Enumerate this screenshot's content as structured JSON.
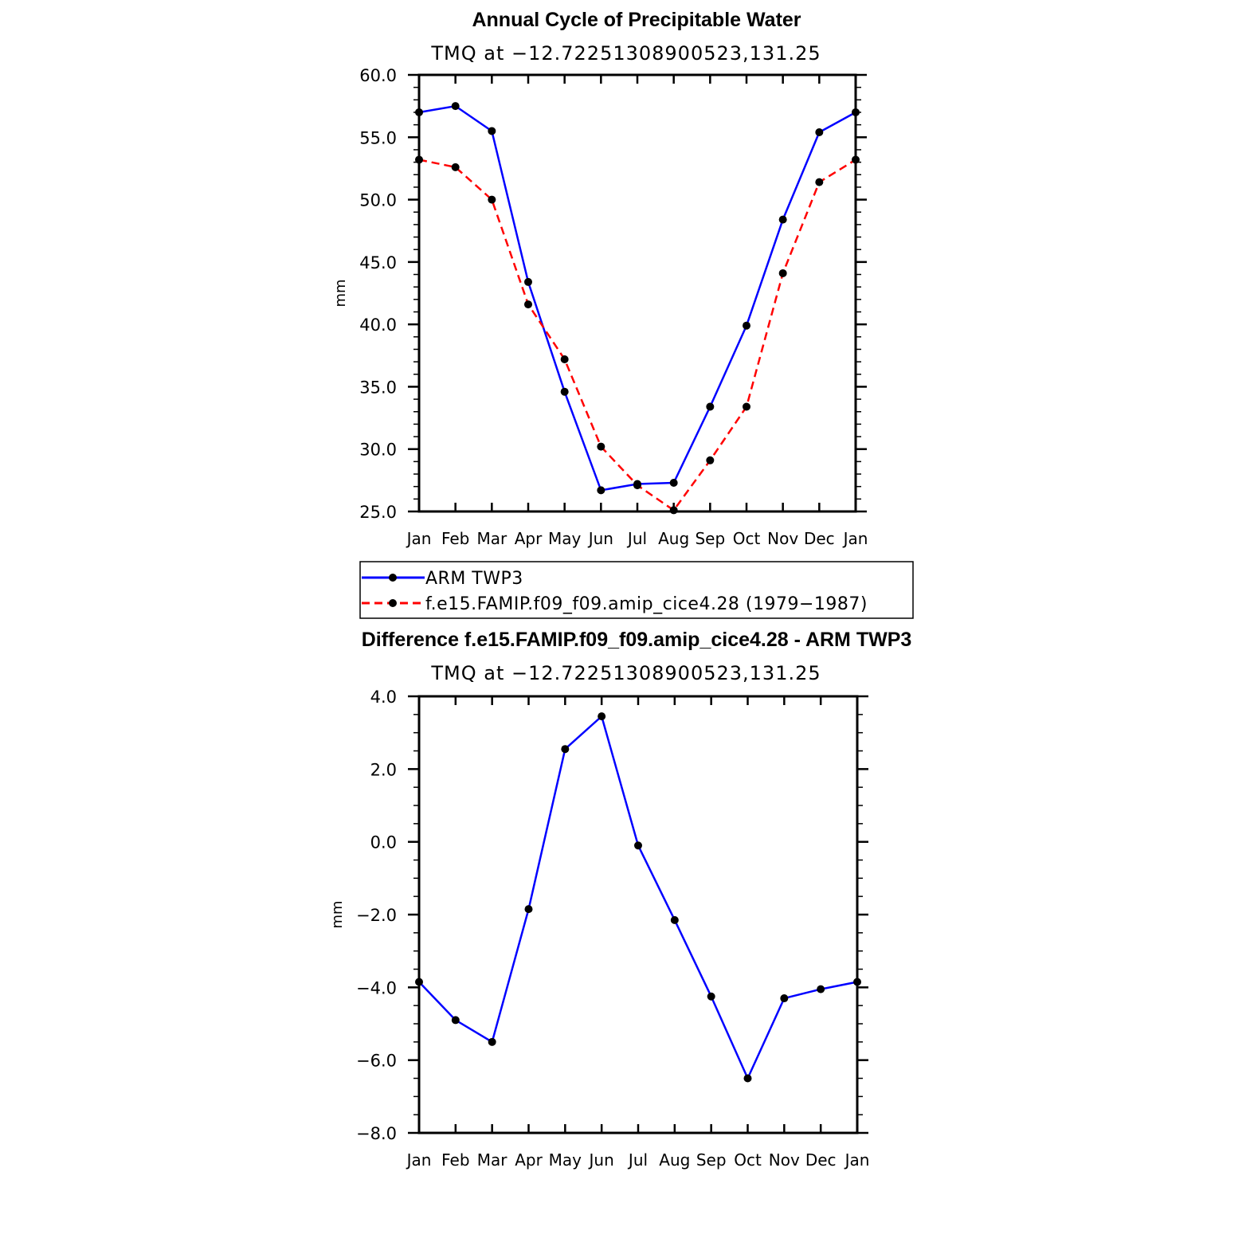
{
  "colors": {
    "arm": "#0000ff",
    "model": "#ff0000",
    "marker": "#000000"
  },
  "chart_data": [
    {
      "type": "line",
      "title": "Annual Cycle of Precipitable Water",
      "subtitle": "TMQ  at  −12.72251308900523,131.25",
      "ylabel": "mm",
      "xlabel": "",
      "categories": [
        "Jan",
        "Feb",
        "Mar",
        "Apr",
        "May",
        "Jun",
        "Jul",
        "Aug",
        "Sep",
        "Oct",
        "Nov",
        "Dec",
        "Jan"
      ],
      "ylim": [
        25,
        60
      ],
      "yticks": [
        25,
        30,
        35,
        40,
        45,
        50,
        55,
        60
      ],
      "ytick_labels": [
        "25.0",
        "30.0",
        "35.0",
        "40.0",
        "45.0",
        "50.0",
        "55.0",
        "60.0"
      ],
      "series": [
        {
          "name": "ARM  TWP3",
          "style": "solid",
          "values": [
            57.0,
            57.5,
            55.5,
            43.4,
            34.6,
            26.7,
            27.2,
            27.3,
            33.4,
            39.9,
            48.4,
            55.4,
            57.0
          ]
        },
        {
          "name": "f.e15.FAMIP.f09_f09.amip_cice4.28  (1979−1987)",
          "style": "dashed",
          "values": [
            53.2,
            52.6,
            50.0,
            41.6,
            37.2,
            30.2,
            27.1,
            25.1,
            29.1,
            33.4,
            44.1,
            51.4,
            53.2
          ]
        }
      ],
      "legend": "below"
    },
    {
      "type": "line",
      "title": "Difference f.e15.FAMIP.f09_f09.amip_cice4.28 - ARM TWP3",
      "subtitle": "TMQ  at  −12.72251308900523,131.25",
      "ylabel": "mm",
      "xlabel": "",
      "categories": [
        "Jan",
        "Feb",
        "Mar",
        "Apr",
        "May",
        "Jun",
        "Jul",
        "Aug",
        "Sep",
        "Oct",
        "Nov",
        "Dec",
        "Jan"
      ],
      "ylim": [
        -8,
        4
      ],
      "yticks": [
        -8,
        -6,
        -4,
        -2,
        0,
        2,
        4
      ],
      "ytick_labels": [
        "−8.0",
        "−6.0",
        "−4.0",
        "−2.0",
        "0.0",
        "2.0",
        "4.0"
      ],
      "series": [
        {
          "style": "solid",
          "values": [
            -3.85,
            -4.9,
            -5.5,
            -1.85,
            2.55,
            3.45,
            -0.1,
            -2.15,
            -4.25,
            -6.5,
            -4.3,
            -4.05,
            -3.85
          ]
        }
      ]
    }
  ]
}
